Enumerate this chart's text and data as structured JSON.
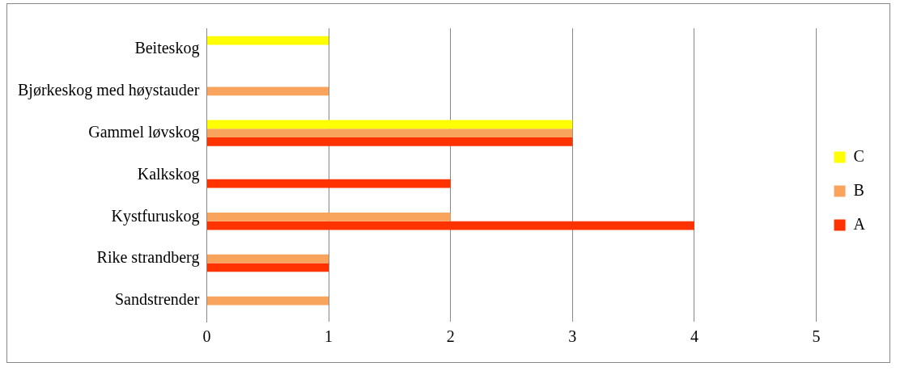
{
  "chart_data": {
    "type": "bar",
    "orientation": "horizontal",
    "categories": [
      "Beiteskog",
      "Bjørkeskog med høystauder",
      "Gammel løvskog",
      "Kalkskog",
      "Kystfuruskog",
      "Rike strandberg",
      "Sandstrender"
    ],
    "series": [
      {
        "name": "C",
        "color": "#ffff00",
        "values": [
          1,
          null,
          3,
          null,
          null,
          null,
          null
        ]
      },
      {
        "name": "B",
        "color": "#f9a45c",
        "values": [
          null,
          1,
          3,
          null,
          2,
          1,
          1
        ]
      },
      {
        "name": "A",
        "color": "#ff3300",
        "values": [
          null,
          null,
          3,
          2,
          4,
          1,
          null
        ]
      }
    ],
    "xlim": [
      0,
      5
    ],
    "xticks": [
      0,
      1,
      2,
      3,
      4,
      5
    ],
    "grid": "x",
    "legend": "right"
  }
}
